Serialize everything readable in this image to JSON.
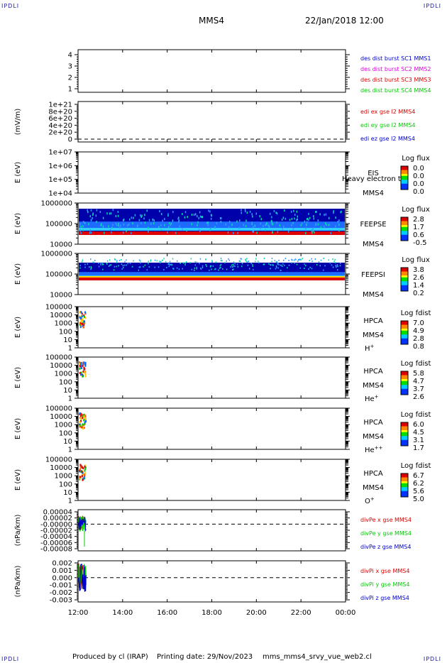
{
  "header": {
    "corner_tl": "IPDLI",
    "corner_tr": "IPDLI",
    "corner_bl": "IPDLI",
    "corner_br": "IPDLI",
    "spacecraft": "MMS4",
    "datetime": "22/Jan/2018 12:00"
  },
  "footer": {
    "produced_by": "Produced by cl (IRAP)",
    "printing_date": "Printing date: 29/Nov/2023",
    "filename": "mms_mms4_srvy_vue_web2.cl"
  },
  "colors": {
    "axis": "#000000",
    "red": "#dd0000",
    "green": "#00cc00",
    "blue": "#0000cc",
    "magenta": "#dd00dd",
    "spectro_dark": "#0000aa",
    "spectro_mid": "#1e6cff",
    "spectro_band": "#dd0000"
  },
  "chart_data": [
    {
      "type": "line",
      "id": "des-dist",
      "ylabel": "",
      "yticks": [
        "1",
        "2",
        "3",
        "4"
      ],
      "legend": [
        {
          "text": "des dist burst SC1 MMS1",
          "color": "#0000cc"
        },
        {
          "text": "des dist burst SC2 MMS2",
          "color": "#dd00dd"
        },
        {
          "text": "des dist burst SC3 MMS3",
          "color": "#dd0000"
        },
        {
          "text": "des dist burst SC4 MMS4",
          "color": "#00cc00"
        }
      ],
      "series": []
    },
    {
      "type": "line",
      "id": "edi",
      "ylabel": "(mV/m)",
      "yticks": [
        "0",
        "2e+20",
        "4e+20",
        "6e+20",
        "8e+20",
        "1e+21"
      ],
      "legend": [
        {
          "text": "edi ex gse l2 MMS4",
          "color": "#dd0000"
        },
        {
          "text": "edi ey gse l2 MMS4",
          "color": "#00cc00"
        },
        {
          "text": "edi ez gse l2 MMS4",
          "color": "#0000cc"
        }
      ],
      "series": []
    },
    {
      "type": "heatmap",
      "id": "eis",
      "ylabel": "E (eV)",
      "yticks": [
        "1e+04",
        "1e+05",
        "1e+06",
        "1e+07"
      ],
      "instrument": "EIS",
      "species": "",
      "overlay": "Heavy electron to",
      "mms": "MMS4",
      "colorbar_title": "Log flux",
      "colorbar_ticks": [
        "0.0",
        "0.0",
        "0.0",
        "0.0"
      ]
    },
    {
      "type": "heatmap",
      "id": "feepse",
      "ylabel": "E (eV)",
      "yticks": [
        "10000",
        "100000",
        "1000000"
      ],
      "instrument": "FEEPSE",
      "species": "",
      "mms": "MMS4",
      "colorbar_title": "Log flux",
      "colorbar_ticks": [
        "2.8",
        "1.7",
        "0.6",
        "-0.5"
      ]
    },
    {
      "type": "heatmap",
      "id": "feepsi",
      "ylabel": "E (eV)",
      "yticks": [
        "10000",
        "100000",
        "1000000"
      ],
      "instrument": "FEEPSI",
      "species": "",
      "mms": "MMS4",
      "colorbar_title": "Log flux",
      "colorbar_ticks": [
        "3.8",
        "2.6",
        "1.4",
        "0.2"
      ]
    },
    {
      "type": "heatmap",
      "id": "hpca-h",
      "ylabel": "E (eV)",
      "yticks": [
        "1",
        "10",
        "100",
        "1000",
        "10000",
        "100000"
      ],
      "instrument": "HPCA",
      "mms": "MMS4",
      "species": "H",
      "species_sup": "+",
      "colorbar_title": "Log fdist",
      "colorbar_ticks": [
        "7.0",
        "4.9",
        "2.8",
        "0.8"
      ]
    },
    {
      "type": "heatmap",
      "id": "hpca-he",
      "ylabel": "E (eV)",
      "yticks": [
        "1",
        "10",
        "100",
        "1000",
        "10000",
        "100000"
      ],
      "instrument": "HPCA",
      "mms": "MMS4",
      "species": "He",
      "species_sup": "+",
      "colorbar_title": "Log fdist",
      "colorbar_ticks": [
        "5.8",
        "4.7",
        "3.7",
        "2.6"
      ]
    },
    {
      "type": "heatmap",
      "id": "hpca-he2",
      "ylabel": "E (eV)",
      "yticks": [
        "1",
        "10",
        "100",
        "1000",
        "10000",
        "100000"
      ],
      "instrument": "HPCA",
      "mms": "MMS4",
      "species": "He",
      "species_sup": "++",
      "colorbar_title": "Log fdist",
      "colorbar_ticks": [
        "6.0",
        "4.5",
        "3.1",
        "1.7"
      ]
    },
    {
      "type": "heatmap",
      "id": "hpca-o",
      "ylabel": "E (eV)",
      "yticks": [
        "1",
        "10",
        "100",
        "1000",
        "10000",
        "100000"
      ],
      "instrument": "HPCA",
      "mms": "MMS4",
      "species": "O",
      "species_sup": "+",
      "colorbar_title": "Log fdist",
      "colorbar_ticks": [
        "6.7",
        "6.2",
        "5.6",
        "5.0"
      ]
    },
    {
      "type": "line",
      "id": "divpe",
      "ylabel": "(nPa/km)",
      "yticks": [
        "-0.00008",
        "-0.00006",
        "-0.00004",
        "-0.00002",
        "-0.00000",
        "0.00002",
        "0.00004"
      ],
      "legend": [
        {
          "text": "divPe x gse MMS4",
          "color": "#dd0000"
        },
        {
          "text": "divPe y gse MMS4",
          "color": "#00cc00"
        },
        {
          "text": "divPe z gse MMS4",
          "color": "#0000cc"
        }
      ],
      "series": []
    },
    {
      "type": "line",
      "id": "divpi",
      "ylabel": "(nPa/km)",
      "yticks": [
        "-0.003",
        "-0.002",
        "-0.001",
        "0.000",
        "0.001",
        "0.002"
      ],
      "legend": [
        {
          "text": "divPi x gse MMS4",
          "color": "#dd0000"
        },
        {
          "text": "divPi y gse MMS4",
          "color": "#00cc00"
        },
        {
          "text": "divPi z gse MMS4",
          "color": "#0000cc"
        }
      ],
      "series": []
    }
  ],
  "time_axis": {
    "ticks": [
      "12:00",
      "14:00",
      "16:00",
      "18:00",
      "20:00",
      "22:00",
      "00:00"
    ]
  }
}
